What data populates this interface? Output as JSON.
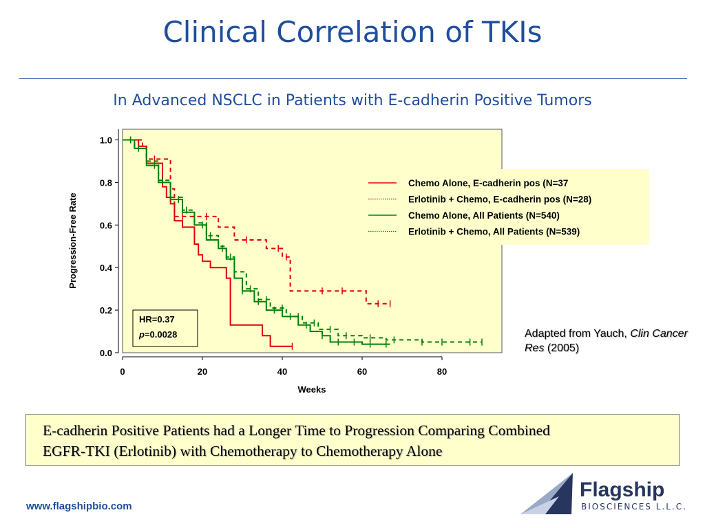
{
  "slide": {
    "title": "Clinical Correlation of TKIs",
    "subtitle": "In Advanced NSCLC in Patients with E-cadherin Positive Tumors",
    "source_prefix": "Adapted from Yauch, ",
    "source_journal": "Clin Cancer Res",
    "source_year": " (2005)",
    "conclusion_line1": "E-cadherin Positive Patients had a Longer Time to Progression Comparing Combined",
    "conclusion_line2": "EGFR-TKI (Erlotinib) with Chemotherapy to Chemotherapy Alone",
    "footer_url": "www.flagshipbio.com",
    "logo": {
      "name": "Flagship",
      "subtitle": "BIOSCIENCES L.L.C.",
      "color": "#27355f"
    },
    "title_color": "#1f4e9c"
  },
  "chart_data": {
    "type": "line",
    "xlabel": "Weeks",
    "ylabel": "Progression-Free Rate",
    "xlim": [
      0,
      95
    ],
    "ylim": [
      0,
      1.05
    ],
    "xticks": [
      "0",
      "20",
      "40",
      "60",
      "80"
    ],
    "yticks": [
      "0.0",
      "0.2",
      "0.4",
      "0.6",
      "0.8",
      "1.0"
    ],
    "legend_position": "top-right",
    "annotation": {
      "hr": "HR=0.37",
      "p_label": "p",
      "p_value": "=0.0028"
    },
    "series": [
      {
        "name": "Chemo Alone, E-cadherin pos (N=37",
        "color": "#e00000",
        "style": "solid",
        "x": [
          0,
          4,
          6,
          10,
          11,
          12,
          13,
          15,
          18,
          19,
          20,
          22,
          26,
          27,
          34,
          35,
          37,
          42.5
        ],
        "y": [
          1.0,
          0.97,
          0.89,
          0.78,
          0.73,
          0.7,
          0.62,
          0.59,
          0.51,
          0.46,
          0.43,
          0.4,
          0.35,
          0.13,
          0.13,
          0.08,
          0.03,
          0.03
        ],
        "censor_x": [
          42.5
        ]
      },
      {
        "name": "Erlotinib + Chemo, E-cadherin pos (N=28)",
        "color": "#e00000",
        "style": "dashed",
        "x": [
          0,
          5,
          6,
          12,
          13,
          18,
          24,
          28,
          33,
          36,
          40,
          42,
          60,
          61,
          67
        ],
        "y": [
          1.0,
          0.97,
          0.91,
          0.77,
          0.64,
          0.64,
          0.59,
          0.53,
          0.53,
          0.49,
          0.45,
          0.29,
          0.29,
          0.23,
          0.23
        ],
        "censor_x": [
          2,
          8,
          15,
          21,
          31,
          39,
          41,
          50,
          55,
          64,
          67
        ]
      },
      {
        "name": "Chemo Alone, All Patients (N=540)",
        "color": "#008000",
        "style": "solid",
        "x": [
          0,
          3,
          6,
          9,
          12,
          15,
          18,
          21,
          24,
          26,
          28,
          30,
          33,
          36,
          40,
          44,
          47,
          50,
          52,
          56,
          60,
          64,
          67
        ],
        "y": [
          1.0,
          0.96,
          0.88,
          0.8,
          0.72,
          0.66,
          0.6,
          0.53,
          0.49,
          0.44,
          0.35,
          0.29,
          0.24,
          0.2,
          0.17,
          0.13,
          0.1,
          0.08,
          0.05,
          0.05,
          0.04,
          0.04,
          0.04
        ],
        "censor_x": [
          2,
          8,
          14,
          20,
          25,
          30,
          34,
          38,
          42,
          46,
          50,
          54,
          58,
          62,
          66
        ]
      },
      {
        "name": "Erlotinib + Chemo, All Patients (N=539)",
        "color": "#008000",
        "style": "dashed",
        "x": [
          0,
          3,
          6,
          9,
          12,
          15,
          18,
          21,
          24,
          26,
          28,
          31,
          34,
          37,
          41,
          45,
          49,
          54,
          60,
          66,
          70,
          75,
          82,
          90
        ],
        "y": [
          1.0,
          0.96,
          0.9,
          0.81,
          0.73,
          0.67,
          0.61,
          0.55,
          0.5,
          0.45,
          0.38,
          0.3,
          0.25,
          0.21,
          0.17,
          0.14,
          0.11,
          0.08,
          0.07,
          0.06,
          0.06,
          0.05,
          0.05,
          0.05
        ],
        "censor_x": [
          4,
          10,
          16,
          22,
          27,
          32,
          36,
          40,
          44,
          48,
          52,
          56,
          62,
          68,
          75,
          80,
          87,
          90
        ]
      }
    ]
  }
}
